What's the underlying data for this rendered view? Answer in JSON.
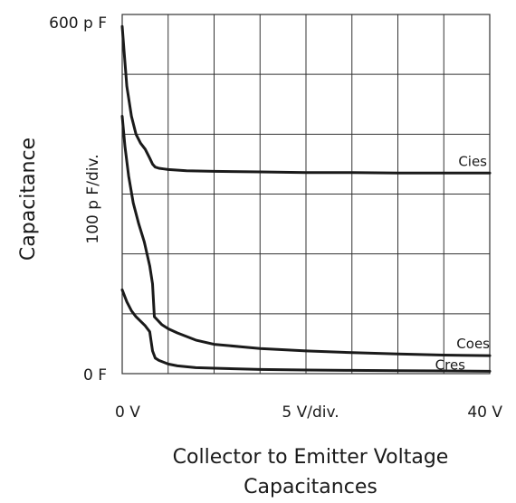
{
  "chart_data": {
    "type": "line",
    "title": "",
    "xlabel": "Collector to Emitter Voltage",
    "caption": "Capacitances",
    "ylabel": "Capacitance",
    "y_division_label": "100 p F/div.",
    "x_division_label": "5  V/div.",
    "x_tick_labels": {
      "min": "0  V",
      "max": "40  V"
    },
    "y_tick_labels": {
      "min": "0  F",
      "max": "600 p F"
    },
    "xlim": [
      0,
      40
    ],
    "ylim": [
      0,
      600
    ],
    "grid": true,
    "series": [
      {
        "name": "Cies",
        "x": [
          0,
          0.2,
          0.5,
          1,
          1.5,
          2,
          2.5,
          3,
          3.3,
          3.6,
          4,
          4.5,
          5,
          7,
          10,
          15,
          20,
          25,
          30,
          35,
          40
        ],
        "y": [
          580,
          540,
          480,
          430,
          400,
          385,
          375,
          360,
          350,
          345,
          343,
          342,
          341,
          339,
          338,
          337,
          336,
          336,
          335,
          335,
          335
        ]
      },
      {
        "name": "Coes",
        "x": [
          0,
          0.3,
          0.7,
          1.2,
          1.8,
          2.4,
          3,
          3.3,
          3.5,
          3.8,
          4.3,
          5,
          6,
          8,
          10,
          15,
          20,
          25,
          30,
          35,
          40
        ],
        "y": [
          430,
          380,
          330,
          285,
          250,
          220,
          180,
          150,
          95,
          90,
          82,
          75,
          68,
          56,
          49,
          42,
          38,
          35,
          33,
          31,
          30
        ]
      },
      {
        "name": "Cres",
        "x": [
          0,
          0.5,
          1,
          1.5,
          2.5,
          3,
          3.3,
          3.6,
          4,
          5,
          6,
          8,
          10,
          15,
          20,
          25,
          30,
          35,
          40
        ],
        "y": [
          140,
          120,
          105,
          95,
          80,
          70,
          38,
          26,
          22,
          16,
          13,
          10,
          9,
          7,
          6,
          5.5,
          5,
          4.5,
          4
        ]
      }
    ]
  }
}
